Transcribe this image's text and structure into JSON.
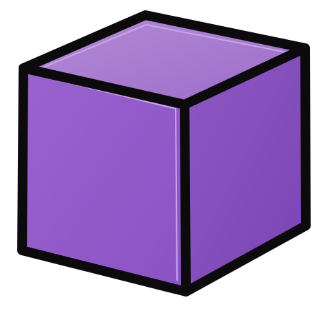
{
  "illustration": {
    "subject": "purple-cube",
    "colors": {
      "background": "#ffffff",
      "outline": "#0c0a0d",
      "top_face_light": "#b58bd6",
      "top_face_dark": "#9b6cc9",
      "front_face_light": "#9a63cf",
      "front_face_dark": "#8b52c4",
      "right_face_light": "#8e58c4",
      "right_face_dark": "#7a45b2",
      "edge_highlight": "#c9a6ea"
    }
  }
}
